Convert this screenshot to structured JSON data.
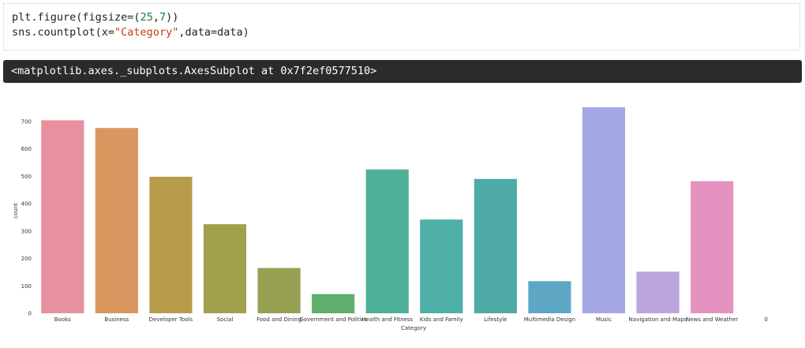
{
  "code_cell": {
    "line1": {
      "fn": "plt.figure(figsize=(",
      "num1": "25",
      "sep": ",",
      "num2": "7",
      "end": "))"
    },
    "line2": {
      "fn": "sns.countplot(x=",
      "str": "\"Category\"",
      "rest": ",data=data)"
    }
  },
  "output": {
    "text": "<matplotlib.axes._subplots.AxesSubplot at 0x7f2ef0577510>"
  },
  "chart_data": {
    "type": "bar",
    "title": "",
    "xlabel": "Category",
    "ylabel": "count",
    "ylim": [
      0,
      760
    ],
    "yticks": [
      0,
      100,
      200,
      300,
      400,
      500,
      600,
      700
    ],
    "grid": false,
    "categories": [
      "Books",
      "Business",
      "Developer Tools",
      "Social",
      "Food and Dining",
      "Government and Politics",
      "Health and Fitness",
      "Kids and Family",
      "Lifestyle",
      "Multimedia Design",
      "Music",
      "Navigation and Maps",
      "News and Weather",
      "0"
    ],
    "values": [
      704,
      676,
      498,
      325,
      165,
      70,
      525,
      342,
      490,
      117,
      752,
      152,
      482,
      0
    ],
    "colors": [
      "#e8919e",
      "#d9975f",
      "#b89c4c",
      "#a3a04d",
      "#97a050",
      "#5fae6b",
      "#4fb09a",
      "#4fb0a8",
      "#4daaa6",
      "#5da7c4",
      "#a6a8e6",
      "#bca4dc",
      "#e592c0",
      "#e591a6"
    ]
  }
}
